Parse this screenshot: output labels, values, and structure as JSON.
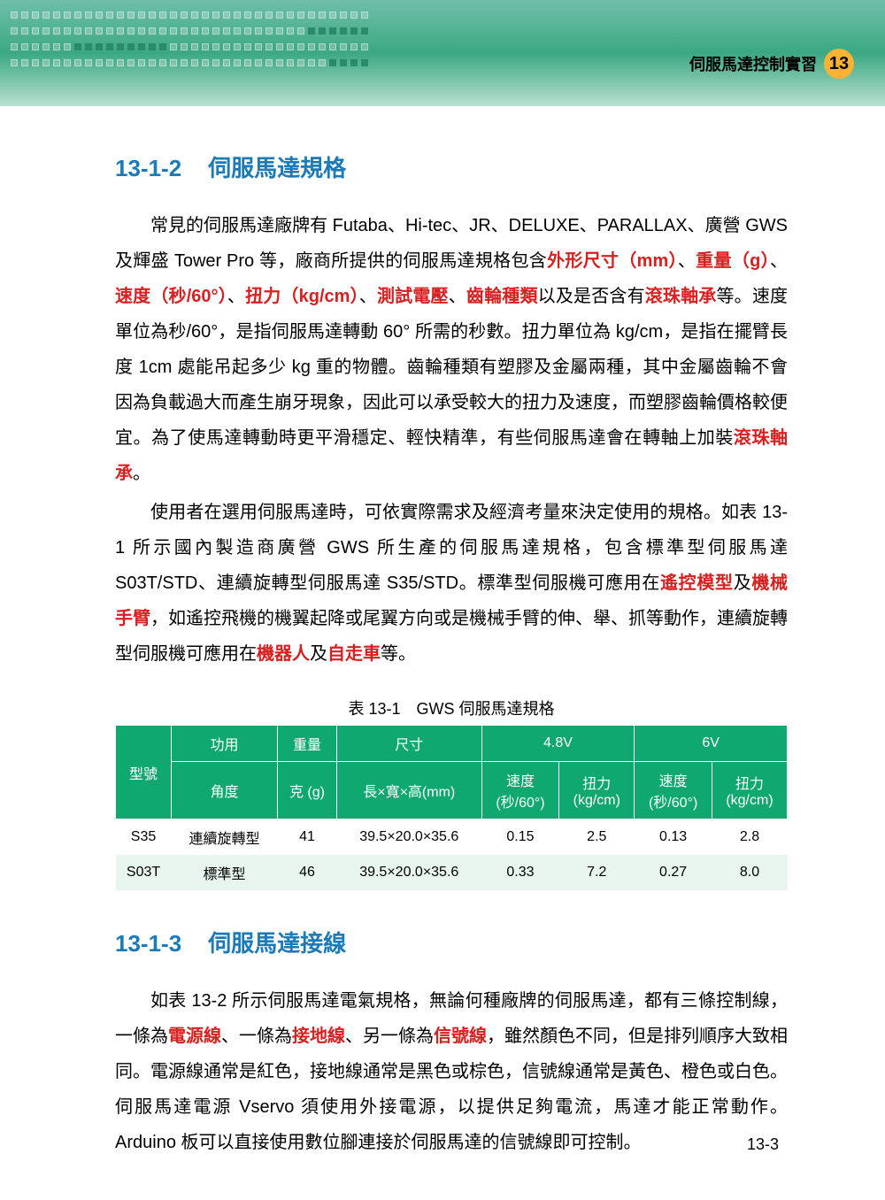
{
  "header": {
    "chapter_title": "伺服馬達控制實習",
    "chapter_number": "13"
  },
  "section1": {
    "number": "13-1-2",
    "title": "伺服馬達規格",
    "para1": {
      "t1": "常見的伺服馬達廠牌有 Futaba、Hi-tec、JR、DELUXE、PARALLAX、廣營 GWS 及輝盛 Tower Pro 等，廠商所提供的伺服馬達規格包含",
      "r1": "外形尺寸（mm）",
      "s1": "、",
      "r2": "重量（g）",
      "s2": "、",
      "r3": "速度（秒/60°）",
      "s3": "、",
      "r4": "扭力（kg/cm）",
      "s4": "、",
      "r5": "測試電壓",
      "s5": "、",
      "r6": "齒輪種類",
      "t2": "以及是否含有",
      "r7": "滾珠軸承",
      "t3": "等。速度單位為秒/60°，是指伺服馬達轉動 60° 所需的秒數。扭力單位為 kg/cm，是指在擺臂長度 1cm 處能吊起多少 kg 重的物體。齒輪種類有塑膠及金屬兩種，其中金屬齒輪不會因為負載過大而產生崩牙現象，因此可以承受較大的扭力及速度，而塑膠齒輪價格較便宜。為了使馬達轉動時更平滑穩定、輕快精準，有些伺服馬達會在轉軸上加裝",
      "r8": "滾珠軸承",
      "t4": "。"
    },
    "para2": {
      "t1": "使用者在選用伺服馬達時，可依實際需求及經濟考量來決定使用的規格。如表 13-1 所示國內製造商廣營 GWS 所生產的伺服馬達規格，包含標準型伺服馬達 S03T/STD、連續旋轉型伺服馬達 S35/STD。標準型伺服機可應用在",
      "r1": "遙控模型",
      "s1": "及",
      "r2": "機械手臂",
      "t2": "，如遙控飛機的機翼起降或尾翼方向或是機械手臂的伸、舉、抓等動作，連續旋轉型伺服機可應用在",
      "r3": "機器人",
      "s2": "及",
      "r4": "自走車",
      "t3": "等。"
    }
  },
  "table": {
    "caption": "表 13-1　GWS 伺服馬達規格",
    "header_bg": "#0fa96f",
    "headers": {
      "model": "型號",
      "func": "功用",
      "weight": "重量",
      "size": "尺寸",
      "v48": "4.8V",
      "v6": "6V",
      "angle": "角度",
      "gram": "克 (g)",
      "dims": "長×寬×高(mm)",
      "speed": "速度\n(秒/60°)",
      "torque": "扭力\n(kg/cm)"
    },
    "rows": [
      {
        "model": "S35",
        "func": "連續旋轉型",
        "weight": "41",
        "size": "39.5×20.0×35.6",
        "sp48": "0.15",
        "tq48": "2.5",
        "sp6": "0.13",
        "tq6": "2.8"
      },
      {
        "model": "S03T",
        "func": "標準型",
        "weight": "46",
        "size": "39.5×20.0×35.6",
        "sp48": "0.33",
        "tq48": "7.2",
        "sp6": "0.27",
        "tq6": "8.0"
      }
    ]
  },
  "section2": {
    "number": "13-1-3",
    "title": "伺服馬達接線",
    "para1": {
      "t1": "如表 13-2 所示伺服馬達電氣規格，無論何種廠牌的伺服馬達，都有三條控制線，一條為",
      "r1": "電源線",
      "s1": "、一條為",
      "r2": "接地線",
      "s2": "、另一條為",
      "r3": "信號線",
      "t2": "，雖然顏色不同，但是排列順序大致相同。電源線通常是紅色，接地線通常是黑色或棕色，信號線通常是黃色、橙色或白色。伺服馬達電源 Vservo 須使用外接電源，以提供足夠電流，馬達才能正常動作。Arduino 板可以直接使用數位腳連接於伺服馬達的信號線即可控制。"
    }
  },
  "page_number": "13-3"
}
